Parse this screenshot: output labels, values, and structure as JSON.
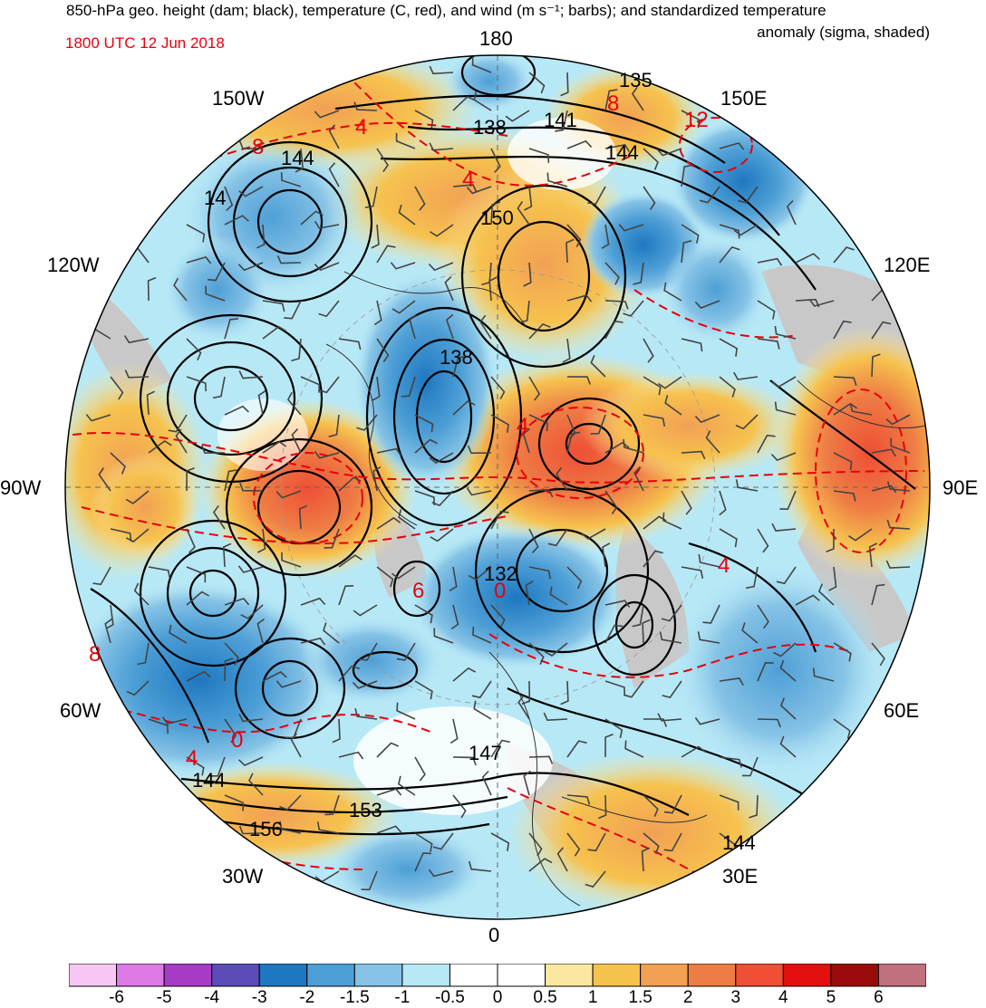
{
  "header": {
    "title_line1": "850-hPa geo. height (dam; black), temperature (C, red), and wind (m s⁻¹; barbs); and standardized temperature",
    "title_line2": "anomaly (sigma, shaded)",
    "valid_time": "1800 UTC 12 Jun 2018"
  },
  "map": {
    "projection": "north polar stereographic",
    "longitude_labels": {
      "top": "180",
      "bottom": "0",
      "left": "90W",
      "right": "90E",
      "lon_150W": "150W",
      "lon_150E": "150E",
      "lon_120W": "120W",
      "lon_120E": "120E",
      "lon_60W": "60W",
      "lon_60E": "60E",
      "lon_30W": "30W",
      "lon_30E": "30E"
    },
    "height_contour_labels": [
      "135",
      "138",
      "141",
      "144",
      "144",
      "14",
      "150",
      "138",
      "132",
      "147",
      "144",
      "153",
      "156",
      "144"
    ],
    "temperature_contour_labels": [
      "8",
      "12",
      "8",
      "4",
      "4",
      "4",
      "0",
      "4",
      "8",
      "0",
      "4",
      "6"
    ],
    "colors": {
      "height_contours": "#000000",
      "temperature_contours": "#e8000b",
      "wind_barbs": "#444444",
      "land_missing": "#c8c8c8"
    }
  },
  "colorbar": {
    "ticks": [
      "-6",
      "-5",
      "-4",
      "-3",
      "-2",
      "-1.5",
      "-1",
      "-0.5",
      "0",
      "0.5",
      "1",
      "1.5",
      "2",
      "3",
      "4",
      "5",
      "6"
    ],
    "colors": [
      "#f7c6f4",
      "#dd7ae6",
      "#a63bc6",
      "#5a4db8",
      "#1e78c0",
      "#4e9fd6",
      "#86c3e6",
      "#b7e8f6",
      "#ffffff",
      "#ffffff",
      "#fbe7a0",
      "#f6c24e",
      "#f2a054",
      "#ee7d45",
      "#ee4f35",
      "#e40f0f",
      "#9a0c0c",
      "#c1717e"
    ]
  }
}
